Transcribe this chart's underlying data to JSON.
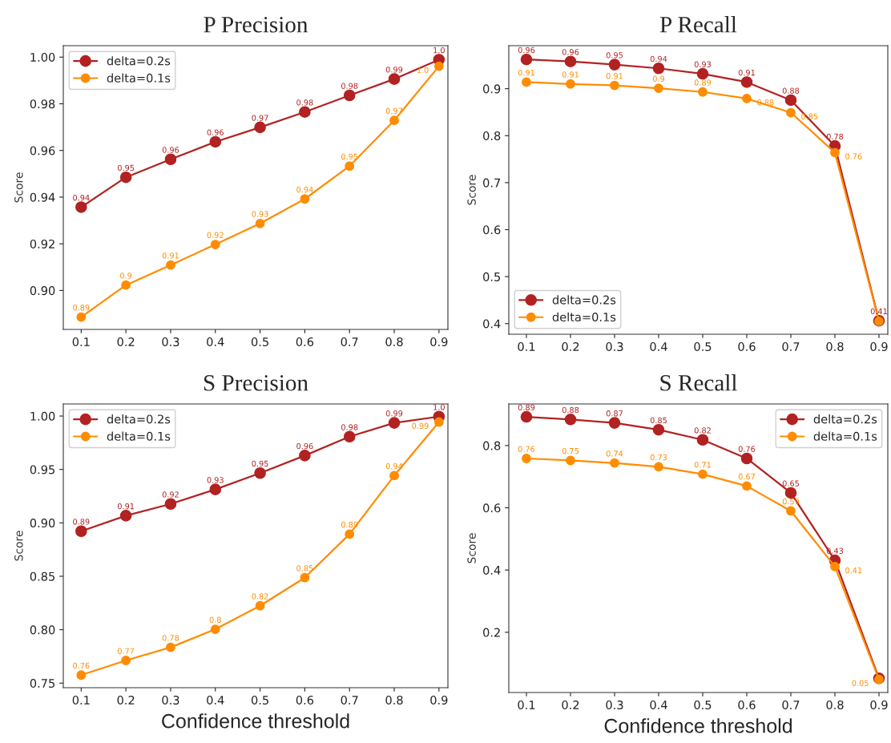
{
  "chart_data": [
    {
      "type": "line",
      "title": "P Precision",
      "ylabel": "Score",
      "x": [
        0.1,
        0.2,
        0.3,
        0.4,
        0.5,
        0.6,
        0.7,
        0.8,
        0.9
      ],
      "xlim": [
        0.06,
        0.92
      ],
      "xticks": [
        0.1,
        0.2,
        0.3,
        0.4,
        0.5,
        0.6,
        0.7,
        0.8,
        0.9
      ],
      "ylim": [
        0.8833,
        1.0049
      ],
      "yticks": [
        {
          "value": 0.9,
          "label": "0.90"
        },
        {
          "value": 0.92,
          "label": "0.92"
        },
        {
          "value": 0.94,
          "label": "0.94"
        },
        {
          "value": 0.96,
          "label": "0.96"
        },
        {
          "value": 0.98,
          "label": "0.98"
        },
        {
          "value": 1.0,
          "label": "1.00"
        }
      ],
      "marker": "circle",
      "legend": "top left",
      "series": [
        {
          "name": "delta=0.2s",
          "color": "#b22222",
          "values": [
            0.9357,
            0.9485,
            0.9562,
            0.9637,
            0.9699,
            0.9765,
            0.9836,
            0.9906,
            0.9989
          ],
          "value_labels": [
            "0.94",
            "0.95",
            "0.96",
            "0.96",
            "0.97",
            "0.98",
            "0.98",
            "0.99",
            "1.0"
          ]
        },
        {
          "name": "delta=0.1s",
          "color": "#ff8c00",
          "values": [
            0.8886,
            0.9023,
            0.9109,
            0.9197,
            0.9287,
            0.9392,
            0.9533,
            0.9729,
            0.9961
          ],
          "value_labels": [
            "0.89",
            "0.9",
            "0.91",
            "0.92",
            "0.93",
            "0.94",
            "0.95",
            "0.97",
            "1.0"
          ]
        }
      ]
    },
    {
      "type": "line",
      "title": "P Recall",
      "ylabel": "Score",
      "x": [
        0.1,
        0.2,
        0.3,
        0.4,
        0.5,
        0.6,
        0.7,
        0.8,
        0.9
      ],
      "xlim": [
        0.06,
        0.92
      ],
      "xticks": [
        0.1,
        0.2,
        0.3,
        0.4,
        0.5,
        0.6,
        0.7,
        0.8,
        0.9
      ],
      "ylim": [
        0.3774,
        0.9915
      ],
      "yticks": [
        0.4,
        0.5,
        0.6,
        0.7,
        0.8,
        0.9
      ],
      "marker": "circle",
      "legend": "bottom left",
      "series": [
        {
          "name": "delta=0.2s",
          "color": "#b22222",
          "values": [
            0.9622,
            0.9579,
            0.9512,
            0.9433,
            0.9317,
            0.914,
            0.8756,
            0.778,
            0.4061
          ],
          "value_labels": [
            "0.96",
            "0.96",
            "0.95",
            "0.94",
            "0.93",
            "0.91",
            "0.88",
            "0.78",
            "0.41"
          ]
        },
        {
          "name": "delta=0.1s",
          "color": "#ff8c00",
          "values": [
            0.914,
            0.91,
            0.907,
            0.901,
            0.893,
            0.879,
            0.849,
            0.764,
            0.405
          ],
          "value_labels": [
            "0.91",
            "0.91",
            "0.91",
            "0.9",
            "0.89",
            "0.88",
            "0.85",
            "0.76",
            null
          ]
        }
      ]
    },
    {
      "type": "line",
      "title": "S Precision",
      "xlabel": "Confidence threshold",
      "ylabel": "Score",
      "x": [
        0.1,
        0.2,
        0.3,
        0.4,
        0.5,
        0.6,
        0.7,
        0.8,
        0.9
      ],
      "xlim": [
        0.06,
        0.92
      ],
      "xticks": [
        0.1,
        0.2,
        0.3,
        0.4,
        0.5,
        0.6,
        0.7,
        0.8,
        0.9
      ],
      "ylim": [
        0.7457,
        1.0113
      ],
      "yticks": [
        {
          "value": 0.75,
          "label": "0.75"
        },
        {
          "value": 0.8,
          "label": "0.80"
        },
        {
          "value": 0.85,
          "label": "0.85"
        },
        {
          "value": 0.9,
          "label": "0.90"
        },
        {
          "value": 0.95,
          "label": "0.95"
        },
        {
          "value": 1.0,
          "label": "1.00"
        }
      ],
      "marker": "circle",
      "legend": "top left",
      "series": [
        {
          "name": "delta=0.2s",
          "color": "#b22222",
          "values": [
            0.8922,
            0.9067,
            0.9177,
            0.9313,
            0.9466,
            0.963,
            0.9807,
            0.9936,
            0.9995
          ],
          "value_labels": [
            "0.89",
            "0.91",
            "0.92",
            "0.93",
            "0.95",
            "0.96",
            "0.98",
            "0.99",
            "1.0"
          ]
        },
        {
          "name": "delta=0.1s",
          "color": "#ff8c00",
          "values": [
            0.7575,
            0.7712,
            0.7835,
            0.8004,
            0.8224,
            0.8487,
            0.8895,
            0.9442,
            0.9944
          ],
          "value_labels": [
            "0.76",
            "0.77",
            "0.78",
            "0.8",
            "0.82",
            "0.85",
            "0.89",
            "0.94",
            "0.99"
          ]
        }
      ]
    },
    {
      "type": "line",
      "title": "S Recall",
      "xlabel": "Confidence threshold",
      "ylabel": "Score",
      "x": [
        0.1,
        0.2,
        0.3,
        0.4,
        0.5,
        0.6,
        0.7,
        0.8,
        0.9
      ],
      "xlim": [
        0.06,
        0.92
      ],
      "xticks": [
        0.1,
        0.2,
        0.3,
        0.4,
        0.5,
        0.6,
        0.7,
        0.8,
        0.9
      ],
      "ylim": [
        0.0065,
        0.9336
      ],
      "yticks": [
        0.2,
        0.4,
        0.6,
        0.8
      ],
      "marker": "circle",
      "legend": "top right",
      "series": [
        {
          "name": "delta=0.2s",
          "color": "#b22222",
          "values": [
            0.8922,
            0.8839,
            0.8728,
            0.8507,
            0.8184,
            0.7585,
            0.6479,
            0.4313,
            0.052
          ],
          "value_labels": [
            "0.89",
            "0.88",
            "0.87",
            "0.85",
            "0.82",
            "0.76",
            "0.65",
            "0.43",
            null
          ]
        },
        {
          "name": "delta=0.1s",
          "color": "#ff8c00",
          "values": [
            0.7585,
            0.7521,
            0.7438,
            0.7318,
            0.7078,
            0.67,
            0.5899,
            0.4111,
            0.0488
          ],
          "value_labels": [
            "0.76",
            "0.75",
            "0.74",
            "0.73",
            "0.71",
            "0.67",
            "0.59",
            "0.41",
            "0.05"
          ]
        }
      ]
    }
  ]
}
